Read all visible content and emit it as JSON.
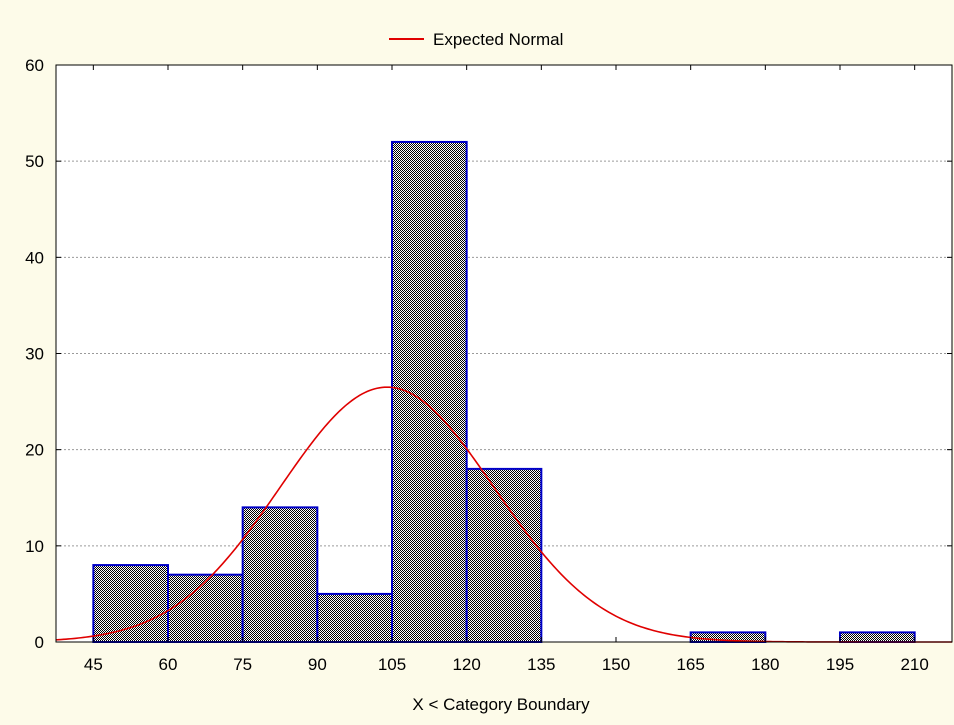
{
  "chart_data": {
    "type": "bar",
    "subtype": "histogram",
    "x_boundaries": [
      45,
      60,
      75,
      90,
      105,
      120,
      135,
      150,
      165,
      180,
      195,
      210
    ],
    "x_ticks": [
      "45",
      "60",
      "75",
      "90",
      "105",
      "120",
      "135",
      "150",
      "165",
      "180",
      "195",
      "210"
    ],
    "bins": [
      {
        "from": 45,
        "to": 60,
        "count": 8
      },
      {
        "from": 60,
        "to": 75,
        "count": 7
      },
      {
        "from": 75,
        "to": 90,
        "count": 14
      },
      {
        "from": 90,
        "to": 105,
        "count": 5
      },
      {
        "from": 105,
        "to": 120,
        "count": 52
      },
      {
        "from": 120,
        "to": 135,
        "count": 18
      },
      {
        "from": 135,
        "to": 150,
        "count": 0
      },
      {
        "from": 150,
        "to": 165,
        "count": 0
      },
      {
        "from": 165,
        "to": 180,
        "count": 1
      },
      {
        "from": 180,
        "to": 195,
        "count": 0
      },
      {
        "from": 195,
        "to": 210,
        "count": 1
      }
    ],
    "expected_normal": {
      "name": "Expected Normal",
      "mean": 104,
      "sd": 21.5,
      "peak": 26.5,
      "color": "#e00000"
    },
    "xlim": [
      37.5,
      217.5
    ],
    "ylim": [
      0,
      60
    ],
    "y_ticks": [
      "0",
      "10",
      "20",
      "30",
      "40",
      "50",
      "60"
    ],
    "xlabel": "X < Category Boundary",
    "ylabel": "",
    "grid": true,
    "legend_position": "top-center",
    "colors": {
      "background": "#fdfbe9",
      "plot_area": "#ffffff",
      "bar_edge": "#0000c8",
      "bar_hatch": "#000000",
      "grid": "#9a9a9a"
    }
  }
}
